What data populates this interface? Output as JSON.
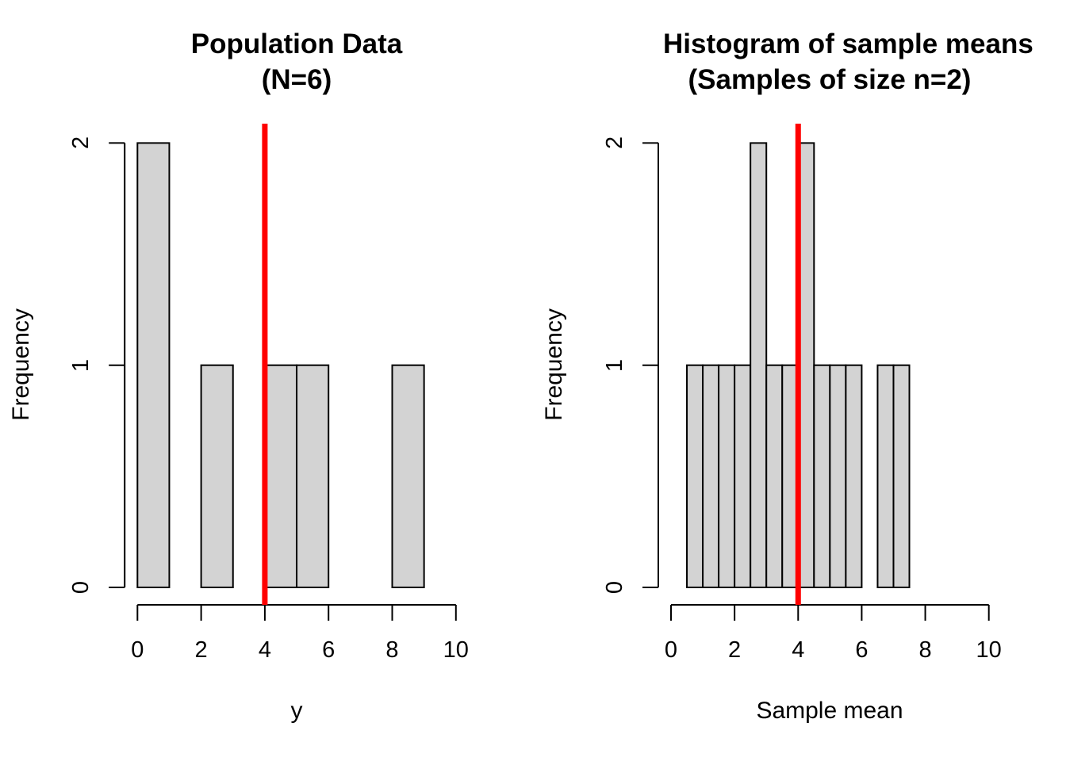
{
  "figure": {
    "background": "#ffffff"
  },
  "chart_data": [
    {
      "type": "bar",
      "subtype": "histogram",
      "title_line1": "Population Data",
      "title_line2": "(N=6)",
      "xlabel": "y",
      "ylabel": "Frequency",
      "x_ticks": [
        0,
        2,
        4,
        6,
        8,
        10
      ],
      "y_ticks": [
        0,
        1,
        2
      ],
      "xlim": [
        0,
        10
      ],
      "ylim": [
        0,
        2
      ],
      "bin_width": 1,
      "bins": [
        {
          "x0": 0,
          "x1": 1,
          "count": 2
        },
        {
          "x0": 2,
          "x1": 3,
          "count": 1
        },
        {
          "x0": 4,
          "x1": 5,
          "count": 1
        },
        {
          "x0": 5,
          "x1": 6,
          "count": 1
        },
        {
          "x0": 8,
          "x1": 9,
          "count": 1
        }
      ],
      "mean_line_x": 4,
      "colors": {
        "bar_fill": "#d3d3d3",
        "bar_stroke": "#000000",
        "mean_line": "#ff0000",
        "axis": "#000000"
      }
    },
    {
      "type": "bar",
      "subtype": "histogram",
      "title_line1": "Histogram of sample means",
      "title_line2": "(Samples of size n=2)",
      "xlabel": "Sample mean",
      "ylabel": "Frequency",
      "x_ticks": [
        0,
        2,
        4,
        6,
        8,
        10
      ],
      "y_ticks": [
        0,
        1,
        2
      ],
      "xlim": [
        0,
        10
      ],
      "ylim": [
        0,
        2
      ],
      "bin_width": 0.5,
      "bins": [
        {
          "x0": 0.5,
          "x1": 1.0,
          "count": 1
        },
        {
          "x0": 1.0,
          "x1": 1.5,
          "count": 1
        },
        {
          "x0": 1.5,
          "x1": 2.0,
          "count": 1
        },
        {
          "x0": 2.0,
          "x1": 2.5,
          "count": 1
        },
        {
          "x0": 2.5,
          "x1": 3.0,
          "count": 2
        },
        {
          "x0": 3.0,
          "x1": 3.5,
          "count": 1
        },
        {
          "x0": 3.5,
          "x1": 4.0,
          "count": 1
        },
        {
          "x0": 4.0,
          "x1": 4.5,
          "count": 2
        },
        {
          "x0": 4.5,
          "x1": 5.0,
          "count": 1
        },
        {
          "x0": 5.0,
          "x1": 5.5,
          "count": 1
        },
        {
          "x0": 5.5,
          "x1": 6.0,
          "count": 1
        },
        {
          "x0": 6.5,
          "x1": 7.0,
          "count": 1
        },
        {
          "x0": 7.0,
          "x1": 7.5,
          "count": 1
        }
      ],
      "mean_line_x": 4,
      "colors": {
        "bar_fill": "#d3d3d3",
        "bar_stroke": "#000000",
        "mean_line": "#ff0000",
        "axis": "#000000"
      }
    }
  ]
}
